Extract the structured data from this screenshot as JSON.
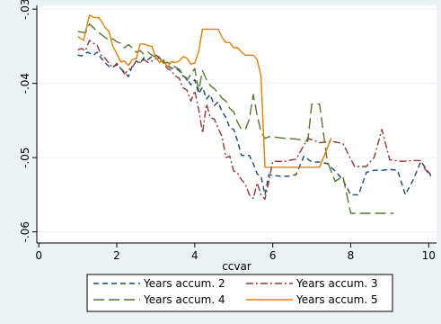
{
  "chart_data": {
    "type": "line",
    "title": "",
    "xlabel": "ccvar",
    "ylabel": "",
    "xlim": [
      -0.05,
      10.2
    ],
    "ylim": [
      -0.0615,
      -0.0295
    ],
    "x_ticks": [
      0,
      2,
      4,
      6,
      8,
      10
    ],
    "y_ticks": [
      -0.03,
      -0.04,
      -0.05,
      -0.06
    ],
    "x_tick_labels": [
      "0",
      "2",
      "4",
      "6",
      "8",
      "10"
    ],
    "y_tick_labels": [
      "-.03",
      "-.04",
      "-.05",
      "-.06"
    ],
    "grid": "horizontal",
    "legend_position": "bottom",
    "background_color": "#eaf2f3",
    "plot_background_color": "#ffffff",
    "series": [
      {
        "name": "Years accum. 2",
        "color": "#1a476f",
        "dash": "dash",
        "x": [
          1.0,
          1.1,
          1.25,
          1.4,
          1.5,
          1.6,
          1.7,
          1.8,
          1.9,
          2.0,
          2.1,
          2.2,
          2.3,
          2.4,
          2.5,
          2.6,
          2.7,
          2.8,
          2.9,
          3.0,
          3.1,
          3.2,
          3.3,
          3.4,
          3.5,
          3.6,
          3.7,
          3.8,
          3.9,
          4.0,
          4.1,
          4.2,
          4.3,
          4.4,
          4.5,
          4.6,
          4.7,
          4.8,
          4.9,
          5.0,
          5.1,
          5.2,
          5.3,
          5.4,
          5.5,
          5.6,
          5.7,
          5.8,
          5.9,
          6.0,
          6.2,
          6.4,
          6.6,
          6.8,
          7.0,
          7.2,
          7.4,
          7.6,
          7.8,
          8.0,
          8.2,
          8.4,
          8.6,
          8.8,
          9.0,
          9.2,
          9.4,
          9.6,
          9.8,
          10.0,
          10.1
        ],
        "y": [
          -0.0362,
          -0.0363,
          -0.0358,
          -0.0362,
          -0.0358,
          -0.0366,
          -0.0372,
          -0.0377,
          -0.0378,
          -0.0375,
          -0.038,
          -0.0385,
          -0.0391,
          -0.0376,
          -0.037,
          -0.0373,
          -0.0365,
          -0.0368,
          -0.0364,
          -0.0362,
          -0.0365,
          -0.0371,
          -0.0376,
          -0.038,
          -0.0379,
          -0.0383,
          -0.039,
          -0.0393,
          -0.0402,
          -0.0395,
          -0.0414,
          -0.0405,
          -0.0421,
          -0.0415,
          -0.043,
          -0.0425,
          -0.0438,
          -0.0446,
          -0.046,
          -0.0462,
          -0.0478,
          -0.0497,
          -0.0497,
          -0.0497,
          -0.0508,
          -0.0522,
          -0.0525,
          -0.055,
          -0.0523,
          -0.0524,
          -0.0525,
          -0.0525,
          -0.0523,
          -0.0498,
          -0.0506,
          -0.0506,
          -0.0508,
          -0.0518,
          -0.053,
          -0.055,
          -0.055,
          -0.052,
          -0.0517,
          -0.0517,
          -0.0516,
          -0.0517,
          -0.055,
          -0.053,
          -0.0505,
          -0.052,
          -0.0525
        ]
      },
      {
        "name": "Years accum. 3",
        "color": "#90353b",
        "dash": "dashdot",
        "x": [
          1.0,
          1.1,
          1.2,
          1.3,
          1.4,
          1.5,
          1.6,
          1.7,
          1.8,
          1.9,
          2.0,
          2.1,
          2.2,
          2.3,
          2.4,
          2.5,
          2.6,
          2.7,
          2.8,
          2.9,
          3.0,
          3.1,
          3.2,
          3.3,
          3.4,
          3.5,
          3.6,
          3.7,
          3.8,
          3.9,
          4.0,
          4.1,
          4.2,
          4.3,
          4.4,
          4.5,
          4.6,
          4.7,
          4.8,
          4.9,
          5.0,
          5.1,
          5.2,
          5.3,
          5.4,
          5.5,
          5.6,
          5.7,
          5.8,
          5.9,
          6.0,
          6.3,
          6.6,
          6.9,
          7.2,
          7.5,
          7.8,
          8.1,
          8.4,
          8.6,
          8.8,
          9.0,
          9.3,
          9.6,
          9.8,
          9.9,
          10.1
        ],
        "y": [
          -0.0355,
          -0.0353,
          -0.0356,
          -0.0342,
          -0.0346,
          -0.0349,
          -0.0362,
          -0.0366,
          -0.0373,
          -0.0379,
          -0.0373,
          -0.038,
          -0.0387,
          -0.0382,
          -0.0378,
          -0.037,
          -0.0372,
          -0.0368,
          -0.0372,
          -0.037,
          -0.0367,
          -0.0366,
          -0.0373,
          -0.038,
          -0.0383,
          -0.039,
          -0.0393,
          -0.0406,
          -0.0409,
          -0.0424,
          -0.041,
          -0.0435,
          -0.0467,
          -0.0428,
          -0.0446,
          -0.0448,
          -0.046,
          -0.0472,
          -0.05,
          -0.0498,
          -0.0518,
          -0.0521,
          -0.053,
          -0.0536,
          -0.055,
          -0.0555,
          -0.0534,
          -0.055,
          -0.0556,
          -0.0532,
          -0.0505,
          -0.0505,
          -0.0502,
          -0.0474,
          -0.048,
          -0.0478,
          -0.0481,
          -0.0512,
          -0.0512,
          -0.05,
          -0.0462,
          -0.0503,
          -0.0505,
          -0.0504,
          -0.0504,
          -0.0515,
          -0.0528
        ]
      },
      {
        "name": "Years accum. 4",
        "color": "#55752f",
        "dash": "longdash",
        "x": [
          1.0,
          1.1,
          1.2,
          1.3,
          1.4,
          1.5,
          1.6,
          1.7,
          1.8,
          1.9,
          2.0,
          2.1,
          2.2,
          2.3,
          2.4,
          2.5,
          2.6,
          2.7,
          2.8,
          2.9,
          3.0,
          3.1,
          3.2,
          3.3,
          3.4,
          3.5,
          3.6,
          3.7,
          3.8,
          3.9,
          4.0,
          4.1,
          4.2,
          4.3,
          4.4,
          4.5,
          4.6,
          4.7,
          4.8,
          4.9,
          5.0,
          5.1,
          5.2,
          5.3,
          5.4,
          5.5,
          5.6,
          5.7,
          5.8,
          5.9,
          6.0,
          6.3,
          6.6,
          6.9,
          7.0,
          7.2,
          7.4,
          7.6,
          7.8,
          8.0,
          8.3,
          8.6,
          8.9,
          9.1
        ],
        "y": [
          -0.033,
          -0.0331,
          -0.0332,
          -0.032,
          -0.0325,
          -0.033,
          -0.0334,
          -0.0338,
          -0.0342,
          -0.034,
          -0.0344,
          -0.0346,
          -0.0352,
          -0.0348,
          -0.0352,
          -0.0358,
          -0.0356,
          -0.0361,
          -0.0358,
          -0.0362,
          -0.0365,
          -0.0368,
          -0.0372,
          -0.0372,
          -0.0374,
          -0.0378,
          -0.0381,
          -0.0388,
          -0.0396,
          -0.0388,
          -0.038,
          -0.041,
          -0.0383,
          -0.0395,
          -0.0403,
          -0.0407,
          -0.0413,
          -0.042,
          -0.0424,
          -0.0434,
          -0.0438,
          -0.0453,
          -0.0462,
          -0.0462,
          -0.0448,
          -0.0415,
          -0.0443,
          -0.0465,
          -0.0474,
          -0.0472,
          -0.0472,
          -0.0474,
          -0.0475,
          -0.0478,
          -0.0428,
          -0.0428,
          -0.0505,
          -0.0532,
          -0.0525,
          -0.0575,
          -0.0575,
          -0.0575,
          -0.0575,
          -0.0575
        ]
      },
      {
        "name": "Years accum. 5",
        "color": "#e37e00",
        "dash": "solid",
        "x": [
          1.0,
          1.15,
          1.3,
          1.4,
          1.55,
          1.65,
          1.7,
          1.8,
          1.9,
          2.0,
          2.1,
          2.2,
          2.3,
          2.4,
          2.5,
          2.6,
          2.7,
          2.8,
          2.9,
          3.0,
          3.1,
          3.2,
          3.3,
          3.4,
          3.5,
          3.6,
          3.7,
          3.8,
          3.9,
          4.0,
          4.1,
          4.2,
          4.3,
          4.4,
          4.5,
          4.6,
          4.7,
          4.8,
          4.9,
          5.0,
          5.1,
          5.2,
          5.3,
          5.4,
          5.5,
          5.6,
          5.7,
          5.8,
          5.9,
          6.0,
          6.3,
          6.6,
          6.9,
          7.2,
          7.5
        ],
        "y": [
          -0.0337,
          -0.0342,
          -0.0308,
          -0.0311,
          -0.0312,
          -0.032,
          -0.0325,
          -0.033,
          -0.035,
          -0.036,
          -0.0371,
          -0.037,
          -0.0376,
          -0.0368,
          -0.0367,
          -0.0347,
          -0.0347,
          -0.0349,
          -0.035,
          -0.0365,
          -0.0372,
          -0.0368,
          -0.0378,
          -0.0371,
          -0.0372,
          -0.037,
          -0.0364,
          -0.0366,
          -0.0374,
          -0.0373,
          -0.0357,
          -0.0327,
          -0.0327,
          -0.0327,
          -0.0327,
          -0.0327,
          -0.0338,
          -0.0345,
          -0.0345,
          -0.0352,
          -0.0352,
          -0.0358,
          -0.0362,
          -0.0362,
          -0.0362,
          -0.0368,
          -0.039,
          -0.0513,
          -0.0513,
          -0.0513,
          -0.0513,
          -0.0513,
          -0.0513,
          -0.0513,
          -0.0474
        ]
      }
    ]
  }
}
